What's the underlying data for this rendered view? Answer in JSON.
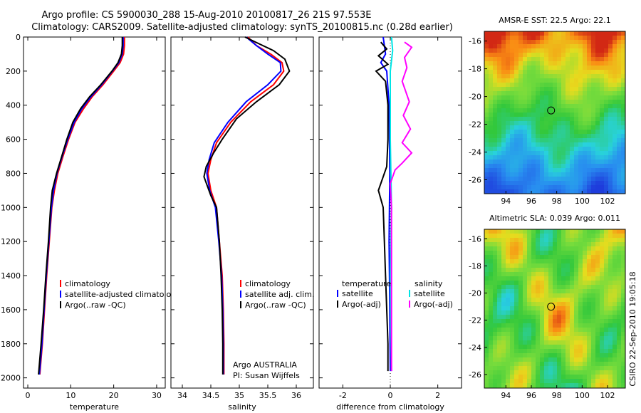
{
  "header": {
    "line1": "Argo profile: CS 5900030_288 15-Aug-2010 20100817_26 21S 97.553E",
    "line2": "Climatology: CARS2009. Satellite-adjusted climatology: synTS_20100815.nc (0.28d earlier)"
  },
  "side_label": "CSIRO 22-Sep-2010 19:05:18",
  "chart_data": [
    {
      "type": "line",
      "xlabel": "temperature",
      "xlim": [
        -1,
        32
      ],
      "ylim": [
        2060,
        0
      ],
      "xticks": [
        "0",
        "10",
        "20",
        "30"
      ],
      "yticks": [
        "0",
        "200",
        "400",
        "600",
        "800",
        "1000",
        "1200",
        "1400",
        "1600",
        "1800",
        "2000"
      ],
      "legend": [
        "climatology",
        "satellite-adjusted climatology",
        "Argo(..raw -QC)"
      ],
      "colors": {
        "climatology": "#ff0000",
        "satellite": "#0000ff",
        "argo": "#000000"
      },
      "series": [
        {
          "name": "climatology",
          "color": "#ff0000",
          "points": [
            [
              22.5,
              0
            ],
            [
              22.5,
              50
            ],
            [
              22.3,
              100
            ],
            [
              21.5,
              150
            ],
            [
              20.0,
              200
            ],
            [
              17.5,
              280
            ],
            [
              15.0,
              350
            ],
            [
              13.0,
              420
            ],
            [
              11.0,
              500
            ],
            [
              9.5,
              600
            ],
            [
              8.2,
              700
            ],
            [
              7.0,
              800
            ],
            [
              6.2,
              900
            ],
            [
              5.6,
              1000
            ],
            [
              5.0,
              1200
            ],
            [
              4.4,
              1400
            ],
            [
              3.9,
              1600
            ],
            [
              3.4,
              1800
            ],
            [
              2.8,
              1980
            ]
          ]
        },
        {
          "name": "satellite-adjusted climatology",
          "color": "#0000ff",
          "points": [
            [
              22.2,
              0
            ],
            [
              22.2,
              50
            ],
            [
              22.0,
              100
            ],
            [
              21.2,
              150
            ],
            [
              19.7,
              200
            ],
            [
              17.2,
              280
            ],
            [
              14.7,
              350
            ],
            [
              12.6,
              420
            ],
            [
              10.8,
              500
            ],
            [
              9.3,
              600
            ],
            [
              8.0,
              700
            ],
            [
              6.8,
              800
            ],
            [
              6.0,
              900
            ],
            [
              5.5,
              1000
            ],
            [
              4.9,
              1200
            ],
            [
              4.3,
              1400
            ],
            [
              3.8,
              1600
            ],
            [
              3.3,
              1800
            ],
            [
              2.7,
              1980
            ]
          ]
        },
        {
          "name": "Argo(..raw -QC)",
          "color": "#000000",
          "points": [
            [
              22.0,
              0
            ],
            [
              22.0,
              50
            ],
            [
              21.8,
              100
            ],
            [
              21.0,
              150
            ],
            [
              19.6,
              200
            ],
            [
              17.0,
              280
            ],
            [
              14.4,
              350
            ],
            [
              12.3,
              420
            ],
            [
              10.5,
              500
            ],
            [
              9.1,
              600
            ],
            [
              7.9,
              700
            ],
            [
              6.7,
              800
            ],
            [
              5.7,
              900
            ],
            [
              5.3,
              1000
            ],
            [
              4.8,
              1200
            ],
            [
              4.2,
              1400
            ],
            [
              3.7,
              1600
            ],
            [
              3.1,
              1800
            ],
            [
              2.5,
              1980
            ]
          ]
        }
      ]
    },
    {
      "type": "line",
      "xlabel": "salinity",
      "xlim": [
        33.8,
        36.3
      ],
      "ylim": [
        2060,
        0
      ],
      "xticks": [
        "34",
        "34.5",
        "35",
        "35.5",
        "36"
      ],
      "legend": [
        "climatology",
        "satellite adj. clim.",
        "Argo(..raw -QC)"
      ],
      "annotation": [
        "Argo AUSTRALIA",
        "PI: Susan Wijffels"
      ],
      "series": [
        {
          "name": "climatology",
          "color": "#ff0000",
          "points": [
            [
              35.15,
              0
            ],
            [
              35.3,
              50
            ],
            [
              35.55,
              100
            ],
            [
              35.75,
              150
            ],
            [
              35.78,
              200
            ],
            [
              35.6,
              280
            ],
            [
              35.2,
              380
            ],
            [
              34.85,
              500
            ],
            [
              34.6,
              620
            ],
            [
              34.5,
              720
            ],
            [
              34.45,
              800
            ],
            [
              34.5,
              900
            ],
            [
              34.6,
              1000
            ],
            [
              34.65,
              1200
            ],
            [
              34.7,
              1400
            ],
            [
              34.72,
              1600
            ],
            [
              34.73,
              1800
            ],
            [
              34.73,
              1980
            ]
          ]
        },
        {
          "name": "satellite adj. clim.",
          "color": "#0000ff",
          "points": [
            [
              35.12,
              0
            ],
            [
              35.3,
              50
            ],
            [
              35.5,
              100
            ],
            [
              35.72,
              150
            ],
            [
              35.73,
              200
            ],
            [
              35.5,
              280
            ],
            [
              35.12,
              380
            ],
            [
              34.8,
              500
            ],
            [
              34.56,
              620
            ],
            [
              34.47,
              720
            ],
            [
              34.43,
              800
            ],
            [
              34.48,
              900
            ],
            [
              34.58,
              1000
            ],
            [
              34.64,
              1200
            ],
            [
              34.69,
              1400
            ],
            [
              34.71,
              1600
            ],
            [
              34.72,
              1800
            ],
            [
              34.72,
              1980
            ]
          ]
        },
        {
          "name": "Argo(..raw -QC)",
          "color": "#000000",
          "points": [
            [
              35.1,
              0
            ],
            [
              35.35,
              40
            ],
            [
              35.6,
              80
            ],
            [
              35.8,
              130
            ],
            [
              35.88,
              200
            ],
            [
              35.7,
              280
            ],
            [
              35.3,
              380
            ],
            [
              34.95,
              480
            ],
            [
              34.7,
              600
            ],
            [
              34.55,
              680
            ],
            [
              34.42,
              760
            ],
            [
              34.38,
              820
            ],
            [
              34.5,
              930
            ],
            [
              34.6,
              1000
            ],
            [
              34.65,
              1200
            ],
            [
              34.68,
              1400
            ],
            [
              34.7,
              1600
            ],
            [
              34.71,
              1800
            ],
            [
              34.71,
              1980
            ]
          ]
        }
      ]
    },
    {
      "type": "line",
      "xlabel": "difference from climatology",
      "xlim": [
        -3,
        3
      ],
      "ylim": [
        2060,
        0
      ],
      "xticks": [
        "-2",
        "0",
        "2"
      ],
      "legend_left_title": "temperature",
      "legend_right_title": "salinity",
      "legend_left": [
        "satellite",
        "Argo(-adj)"
      ],
      "legend_right": [
        "satellite",
        "Argo(-adj)"
      ],
      "series": [
        {
          "name": "temperature satellite",
          "color": "#0000ff",
          "points": [
            [
              -0.3,
              0
            ],
            [
              -0.2,
              100
            ],
            [
              -0.4,
              150
            ],
            [
              -0.15,
              200
            ],
            [
              -0.05,
              400
            ],
            [
              -0.02,
              800
            ],
            [
              -0.05,
              1200
            ],
            [
              -0.02,
              1600
            ],
            [
              0,
              1960
            ]
          ]
        },
        {
          "name": "temperature Argo(-adj)",
          "color": "#000000",
          "points": [
            [
              -0.4,
              30
            ],
            [
              -0.15,
              70
            ],
            [
              -0.5,
              110
            ],
            [
              -0.1,
              160
            ],
            [
              -0.6,
              200
            ],
            [
              -0.2,
              260
            ],
            [
              -0.1,
              400
            ],
            [
              -0.1,
              600
            ],
            [
              -0.15,
              760
            ],
            [
              -0.5,
              900
            ],
            [
              -0.3,
              1000
            ],
            [
              -0.25,
              1200
            ],
            [
              -0.2,
              1400
            ],
            [
              -0.15,
              1600
            ],
            [
              -0.1,
              1800
            ],
            [
              -0.1,
              1960
            ]
          ]
        },
        {
          "name": "salinity satellite",
          "color": "#00e5e5",
          "points": [
            [
              0.05,
              0
            ],
            [
              0.1,
              80
            ],
            [
              0.0,
              200
            ],
            [
              0.0,
              600
            ],
            [
              0.05,
              1000
            ],
            [
              0.0,
              1400
            ],
            [
              0.05,
              1960
            ]
          ]
        },
        {
          "name": "salinity Argo(-adj)",
          "color": "#ff00ff",
          "points": [
            [
              0.6,
              30
            ],
            [
              0.9,
              60
            ],
            [
              0.6,
              120
            ],
            [
              0.7,
              180
            ],
            [
              0.5,
              260
            ],
            [
              0.8,
              380
            ],
            [
              0.55,
              460
            ],
            [
              0.85,
              540
            ],
            [
              0.5,
              620
            ],
            [
              0.9,
              680
            ],
            [
              0.5,
              740
            ],
            [
              0.2,
              780
            ],
            [
              0.0,
              860
            ],
            [
              0.05,
              1000
            ],
            [
              0.05,
              1400
            ],
            [
              0.05,
              1960
            ]
          ]
        }
      ]
    },
    {
      "type": "heatmap",
      "title": "AMSR-E SST: 22.5 Argo: 22.1",
      "xticks": [
        "94",
        "96",
        "98",
        "100",
        "102"
      ],
      "yticks": [
        "-16",
        "-18",
        "-20",
        "-22",
        "-24",
        "-26"
      ],
      "xlim": [
        92.3,
        103.4
      ],
      "ylim": [
        -27,
        -15.3
      ],
      "marker": {
        "lon": 97.553,
        "lat": -21.0
      }
    },
    {
      "type": "heatmap",
      "title": "Altimetric SLA: 0.039 Argo: 0.011",
      "xticks": [
        "94",
        "96",
        "98",
        "100",
        "102"
      ],
      "yticks": [
        "-16",
        "-18",
        "-20",
        "-22",
        "-24",
        "-26"
      ],
      "xlim": [
        92.3,
        103.4
      ],
      "ylim": [
        -27,
        -15.3
      ],
      "marker": {
        "lon": 97.553,
        "lat": -21.0
      }
    }
  ]
}
